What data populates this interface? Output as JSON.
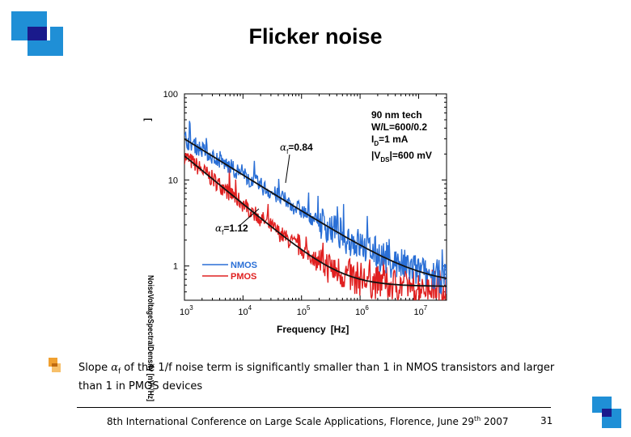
{
  "slide": {
    "title": "Flicker noise",
    "bullet": {
      "prefix": "Slope ",
      "symbol": "α",
      "subscript": "f",
      "text": " of the 1/f noise term is significantly smaller than 1 in NMOS transistors and larger than 1 in PMOS devices"
    },
    "footer": {
      "text": "8th International Conference on Large Scale Applications, Florence, June 29",
      "sup": "th",
      "year": " 2007"
    },
    "page_number": "31"
  },
  "colors": {
    "accent_blue": "#1f8fd6",
    "accent_navy": "#1a1a8c",
    "accent_orange": "#f0a030",
    "nmos": "#2a6fd6",
    "pmos": "#e02020",
    "fit": "#111111"
  },
  "chart_data": {
    "type": "line",
    "xscale": "log",
    "yscale": "log",
    "xlim": [
      1000,
      30000000
    ],
    "ylim": [
      0.4,
      100
    ],
    "xlabel": "Frequency",
    "xunit": "[Hz]",
    "ylabel_garbled": "NoiseVoltageSpectralDensity [nV/√Hz]",
    "ylabel_top": "[",
    "x_ticks": [
      {
        "value": 1000,
        "base": "10",
        "exp": "3"
      },
      {
        "value": 10000,
        "base": "10",
        "exp": "4"
      },
      {
        "value": 100000,
        "base": "10",
        "exp": "5"
      },
      {
        "value": 1000000,
        "base": "10",
        "exp": "6"
      },
      {
        "value": 10000000,
        "base": "10",
        "exp": "7"
      }
    ],
    "y_ticks": [
      {
        "value": 1,
        "label": "1"
      },
      {
        "value": 10,
        "label": "10"
      },
      {
        "value": 100,
        "label": "100"
      }
    ],
    "annotation_box": {
      "lines": [
        "90 nm tech",
        "W/L=600/0.2",
        "I",
        "=1 mA",
        "|V",
        "|=600 mV"
      ],
      "line1": "90 nm tech",
      "line2": "W/L=600/0.2",
      "line3_main": "I",
      "line3_sub": "D",
      "line3_rest": "=1 mA",
      "line4_main": "|V",
      "line4_sub": "DS",
      "line4_rest": "|=600 mV"
    },
    "slope_labels": [
      {
        "symbol": "α",
        "sub": "f",
        "text": "=0.84",
        "series": "NMOS"
      },
      {
        "symbol": "α",
        "sub": "f",
        "text": "=1.12",
        "series": "PMOS"
      }
    ],
    "legend": [
      {
        "name": "NMOS",
        "color": "#2a6fd6"
      },
      {
        "name": "PMOS",
        "color": "#e02020"
      }
    ],
    "series": [
      {
        "name": "NMOS",
        "model": {
          "A": 30,
          "fc": 300000,
          "alpha": 0.84,
          "floor": 0.6
        },
        "x": [
          1000,
          3000,
          10000,
          30000,
          100000,
          300000,
          1000000,
          3000000,
          10000000,
          25000000
        ],
        "values": [
          30,
          12.9,
          4.4,
          2.2,
          1.4,
          1.05,
          0.72,
          0.62,
          0.6,
          0.6
        ]
      },
      {
        "name": "PMOS",
        "model": {
          "A": 19,
          "fc": 1000000,
          "alpha": 1.12,
          "floor": 0.58
        },
        "x": [
          1000,
          3000,
          10000,
          30000,
          100000,
          300000,
          1000000,
          3000000,
          10000000,
          25000000
        ],
        "values": [
          19,
          7.3,
          2.1,
          1.2,
          0.82,
          0.66,
          0.61,
          0.59,
          0.58,
          0.58
        ]
      }
    ]
  }
}
